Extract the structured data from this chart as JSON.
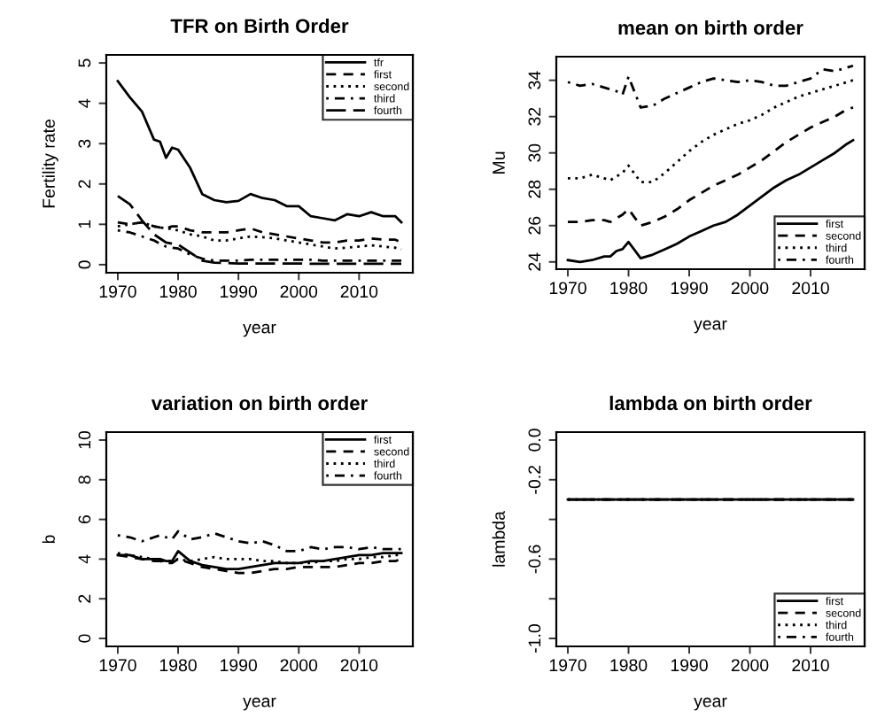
{
  "chart_data": [
    {
      "type": "line",
      "title": "TFR on Birth Order",
      "xlabel": "year",
      "ylabel": "Fertility rate",
      "x": [
        1970,
        1972,
        1974,
        1976,
        1977,
        1978,
        1979,
        1980,
        1982,
        1984,
        1986,
        1988,
        1990,
        1992,
        1994,
        1996,
        1998,
        2000,
        2002,
        2004,
        2006,
        2008,
        2010,
        2012,
        2014,
        2016,
        2017
      ],
      "series": [
        {
          "name": "tfr",
          "color": "#000000",
          "line_style": "solid",
          "values": [
            4.55,
            4.15,
            3.8,
            3.1,
            3.05,
            2.65,
            2.9,
            2.85,
            2.4,
            1.75,
            1.6,
            1.55,
            1.58,
            1.75,
            1.65,
            1.6,
            1.45,
            1.45,
            1.2,
            1.15,
            1.1,
            1.25,
            1.2,
            1.3,
            1.2,
            1.2,
            1.05
          ]
        },
        {
          "name": "first",
          "color": "#000000",
          "line_style": "dashed",
          "values": [
            1.05,
            1.0,
            1.05,
            0.95,
            0.92,
            0.9,
            0.95,
            0.95,
            0.85,
            0.8,
            0.8,
            0.8,
            0.85,
            0.9,
            0.8,
            0.75,
            0.7,
            0.65,
            0.6,
            0.55,
            0.55,
            0.6,
            0.6,
            0.65,
            0.62,
            0.62,
            0.55
          ]
        },
        {
          "name": "second",
          "color": "#000000",
          "line_style": "dotted",
          "values": [
            0.95,
            1.0,
            1.05,
            0.95,
            0.92,
            0.9,
            0.88,
            0.85,
            0.75,
            0.7,
            0.6,
            0.6,
            0.65,
            0.7,
            0.68,
            0.65,
            0.6,
            0.55,
            0.5,
            0.45,
            0.4,
            0.42,
            0.45,
            0.48,
            0.45,
            0.42,
            0.38
          ]
        },
        {
          "name": "third",
          "color": "#000000",
          "line_style": "dashdot",
          "values": [
            0.85,
            0.8,
            0.7,
            0.6,
            0.52,
            0.45,
            0.42,
            0.4,
            0.25,
            0.15,
            0.1,
            0.1,
            0.1,
            0.12,
            0.12,
            0.12,
            0.12,
            0.12,
            0.12,
            0.1,
            0.1,
            0.1,
            0.1,
            0.1,
            0.1,
            0.1,
            0.1
          ]
        },
        {
          "name": "fourth",
          "color": "#000000",
          "line_style": "longdash",
          "values": [
            1.7,
            1.5,
            1.1,
            0.75,
            0.65,
            0.55,
            0.52,
            0.5,
            0.3,
            0.1,
            0.05,
            0.04,
            0.03,
            0.03,
            0.03,
            0.03,
            0.03,
            0.03,
            0.02,
            0.02,
            0.02,
            0.02,
            0.02,
            0.02,
            0.02,
            0.02,
            0.02
          ]
        }
      ],
      "xlim": [
        1968.1,
        2018.9
      ],
      "xticks": [
        1970,
        1980,
        1990,
        2000,
        2010
      ],
      "ylim": [
        -0.2,
        5.2
      ],
      "yticks": [
        0,
        1,
        2,
        3,
        4,
        5
      ],
      "legend": "top right",
      "grid": false
    },
    {
      "type": "line",
      "title": "mean on birth order",
      "xlabel": "year",
      "ylabel": "Mu",
      "x": [
        1970,
        1972,
        1974,
        1976,
        1977,
        1978,
        1979,
        1980,
        1982,
        1984,
        1986,
        1988,
        1990,
        1992,
        1994,
        1996,
        1998,
        2000,
        2002,
        2004,
        2006,
        2008,
        2010,
        2012,
        2014,
        2016,
        2017
      ],
      "series": [
        {
          "name": "first",
          "color": "#000000",
          "line_style": "solid",
          "values": [
            24.1,
            24.0,
            24.1,
            24.3,
            24.3,
            24.6,
            24.7,
            25.1,
            24.2,
            24.4,
            24.7,
            25.0,
            25.4,
            25.7,
            26.0,
            26.2,
            26.6,
            27.1,
            27.6,
            28.1,
            28.5,
            28.8,
            29.2,
            29.6,
            30.0,
            30.5,
            30.7
          ]
        },
        {
          "name": "second",
          "color": "#000000",
          "line_style": "dashed",
          "values": [
            26.2,
            26.2,
            26.3,
            26.3,
            26.2,
            26.4,
            26.6,
            26.9,
            26.0,
            26.2,
            26.5,
            26.9,
            27.4,
            27.8,
            28.2,
            28.5,
            28.8,
            29.2,
            29.6,
            30.1,
            30.6,
            31.0,
            31.4,
            31.7,
            32.0,
            32.4,
            32.5
          ]
        },
        {
          "name": "third",
          "color": "#000000",
          "line_style": "dotted",
          "values": [
            28.6,
            28.6,
            28.8,
            28.6,
            28.5,
            28.7,
            28.9,
            29.3,
            28.4,
            28.4,
            28.9,
            29.5,
            30.1,
            30.6,
            31.0,
            31.3,
            31.6,
            31.8,
            32.1,
            32.5,
            32.8,
            33.1,
            33.3,
            33.5,
            33.7,
            33.9,
            34.0
          ]
        },
        {
          "name": "fourth",
          "color": "#000000",
          "line_style": "dashdot",
          "values": [
            33.9,
            33.7,
            33.8,
            33.6,
            33.5,
            33.4,
            33.2,
            34.2,
            32.5,
            32.6,
            33.0,
            33.3,
            33.6,
            33.9,
            34.1,
            34.0,
            33.9,
            34.0,
            33.9,
            33.7,
            33.7,
            33.9,
            34.1,
            34.6,
            34.5,
            34.7,
            34.8
          ]
        }
      ],
      "xlim": [
        1968.1,
        2018.9
      ],
      "xticks": [
        1970,
        1980,
        1990,
        2000,
        2010
      ],
      "ylim": [
        23.6,
        35.3
      ],
      "yticks": [
        24,
        26,
        28,
        30,
        32,
        34
      ],
      "legend": "bottom right",
      "grid": false
    },
    {
      "type": "line",
      "title": "variation on birth order",
      "xlabel": "year",
      "ylabel": "b",
      "x": [
        1970,
        1972,
        1974,
        1976,
        1977,
        1978,
        1979,
        1980,
        1982,
        1984,
        1986,
        1988,
        1990,
        1992,
        1994,
        1996,
        1998,
        2000,
        2002,
        2004,
        2006,
        2008,
        2010,
        2012,
        2014,
        2016,
        2017
      ],
      "series": [
        {
          "name": "first",
          "color": "#000000",
          "line_style": "solid",
          "values": [
            4.2,
            4.2,
            4.0,
            4.0,
            4.0,
            3.9,
            3.9,
            4.4,
            3.9,
            3.7,
            3.6,
            3.5,
            3.5,
            3.6,
            3.7,
            3.8,
            3.8,
            3.8,
            3.9,
            3.9,
            4.0,
            4.1,
            4.2,
            4.2,
            4.3,
            4.3,
            4.3
          ]
        },
        {
          "name": "second",
          "color": "#000000",
          "line_style": "dashed",
          "values": [
            4.2,
            4.1,
            4.0,
            3.9,
            3.9,
            3.8,
            3.8,
            4.0,
            3.8,
            3.6,
            3.5,
            3.4,
            3.3,
            3.3,
            3.4,
            3.5,
            3.5,
            3.6,
            3.6,
            3.6,
            3.6,
            3.7,
            3.8,
            3.8,
            3.9,
            3.9,
            4.0
          ]
        },
        {
          "name": "third",
          "color": "#000000",
          "line_style": "dotted",
          "values": [
            4.3,
            4.2,
            4.1,
            4.0,
            3.9,
            3.9,
            3.9,
            4.0,
            3.9,
            4.0,
            4.1,
            4.0,
            4.0,
            4.0,
            3.9,
            3.9,
            3.8,
            3.8,
            3.8,
            3.9,
            3.9,
            4.0,
            4.0,
            4.1,
            4.1,
            4.2,
            4.2
          ]
        },
        {
          "name": "fourth",
          "color": "#000000",
          "line_style": "dashdot",
          "values": [
            5.2,
            5.1,
            4.9,
            5.1,
            5.2,
            5.1,
            5.0,
            5.4,
            5.0,
            5.1,
            5.3,
            5.1,
            4.9,
            4.8,
            4.9,
            4.7,
            4.4,
            4.4,
            4.6,
            4.5,
            4.6,
            4.6,
            4.5,
            4.6,
            4.5,
            4.5,
            4.5
          ]
        }
      ],
      "xlim": [
        1968.1,
        2018.9
      ],
      "xticks": [
        1970,
        1980,
        1990,
        2000,
        2010
      ],
      "ylim": [
        -0.4,
        10.4
      ],
      "yticks": [
        0,
        2,
        4,
        6,
        8,
        10
      ],
      "legend": "top right",
      "grid": false
    },
    {
      "type": "line",
      "title": "lambda on birth order",
      "xlabel": "year",
      "ylabel": "lambda",
      "x": [
        1970,
        2017
      ],
      "series": [
        {
          "name": "first",
          "color": "#000000",
          "line_style": "solid",
          "values": [
            -0.3,
            -0.3
          ]
        },
        {
          "name": "second",
          "color": "#000000",
          "line_style": "dashed",
          "values": [
            -0.3,
            -0.3
          ]
        },
        {
          "name": "third",
          "color": "#000000",
          "line_style": "dotted",
          "values": [
            -0.3,
            -0.3
          ]
        },
        {
          "name": "fourth",
          "color": "#000000",
          "line_style": "dashdot",
          "values": [
            -0.3,
            -0.3
          ]
        }
      ],
      "xlim": [
        1968.1,
        2018.9
      ],
      "xticks": [
        1970,
        1980,
        1990,
        2000,
        2010
      ],
      "ylim": [
        -1.04,
        0.04
      ],
      "yticks": [
        {
          "value": -1.0,
          "label": "-1.0"
        },
        {
          "value": -0.8,
          "label": null
        },
        {
          "value": -0.6,
          "label": "-0.6"
        },
        {
          "value": -0.4,
          "label": null
        },
        {
          "value": -0.2,
          "label": "-0.2"
        },
        {
          "value": 0.0,
          "label": "0.0"
        }
      ],
      "legend": "bottom right",
      "grid": false
    }
  ]
}
